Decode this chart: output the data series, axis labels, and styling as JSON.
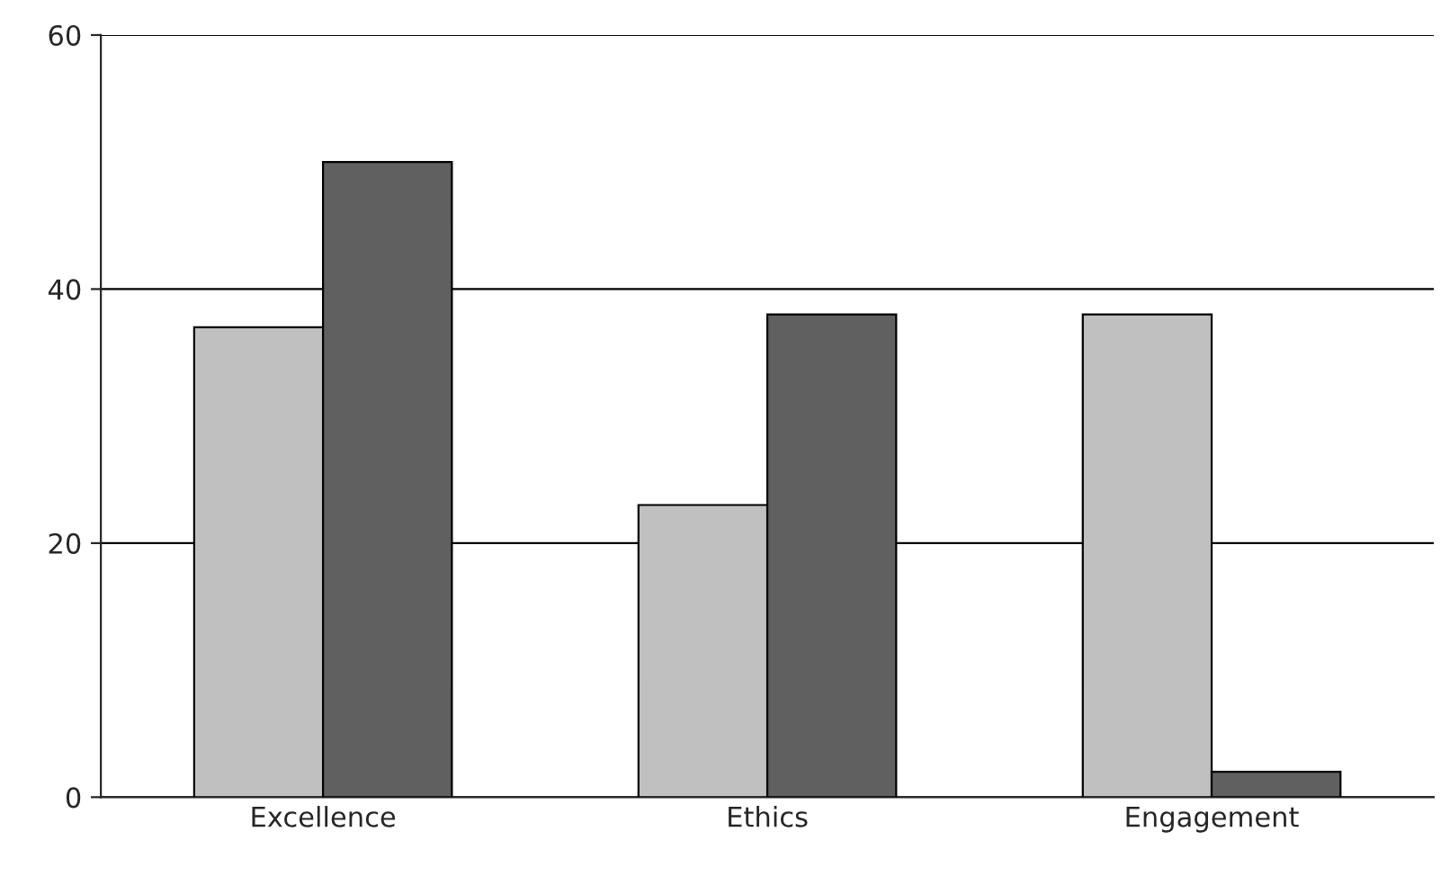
{
  "chart_data": {
    "type": "bar",
    "categories": [
      "Excellence",
      "Ethics",
      "Engagement"
    ],
    "series": [
      {
        "color": "#c0c0c0",
        "values": [
          37,
          23,
          38
        ]
      },
      {
        "color": "#606060",
        "values": [
          50,
          38,
          2
        ]
      }
    ],
    "ylim": [
      0,
      60
    ],
    "yticks": [
      0,
      20,
      40,
      60
    ],
    "grid": "y"
  }
}
